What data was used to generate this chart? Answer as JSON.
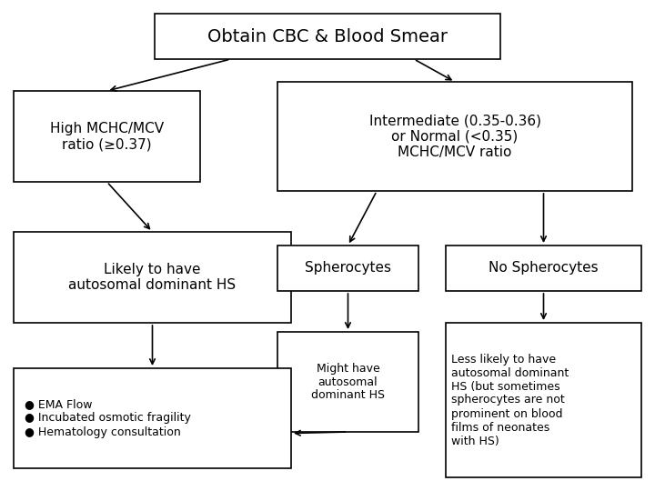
{
  "bg_color": "#ffffff",
  "box_edge_color": "#000000",
  "box_face_color": "#ffffff",
  "text_color": "#000000",
  "arrow_color": "#000000",
  "title": "Obtain CBC & Blood Smear",
  "box_high_mchc": "High MCHC/MCV\nratio (≥0.37)",
  "box_intermediate": "Intermediate (0.35-0.36)\nor Normal (<0.35)\nMCHC/MCV ratio",
  "box_likely": "Likely to have\nautosomal dominant HS",
  "box_spherocytes": "Spherocytes",
  "box_no_spherocytes": "No Spherocytes",
  "box_might": "Might have\nautosomal\ndominant HS",
  "box_less_likely": "Less likely to have\nautosomal dominant\nHS (but sometimes\nspherocytes are not\nprominent on blood\nfilms of neonates\nwith HS)",
  "box_ema": "● EMA Flow\n● Incubated osmotic fragility\n● Hematology consultation",
  "fontsize_title": 14,
  "fontsize_main": 11,
  "fontsize_small": 9
}
